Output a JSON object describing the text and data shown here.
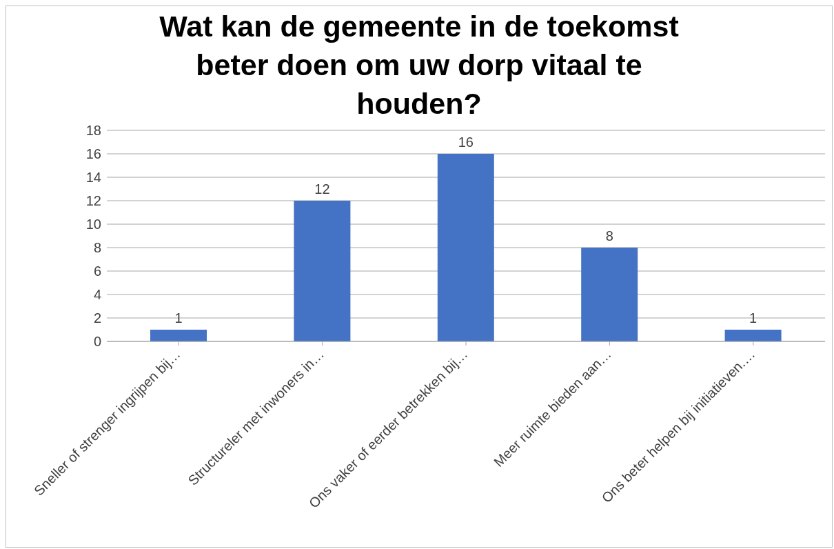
{
  "chart_data": {
    "type": "bar",
    "title": "Wat kan de gemeente in de toekomst beter doen om uw dorp vitaal te houden?",
    "categories": [
      "Sneller of strenger ingrijpen bij…",
      "Structureler met inwoners in…",
      "Ons vaker of eerder betrekken bij…",
      "Meer ruimte bieden aan…",
      "Ons beter helpen bij initiatieven.…"
    ],
    "values": [
      1,
      12,
      16,
      8,
      1
    ],
    "color": "#4472c4",
    "ylim": [
      0,
      18
    ],
    "yticks": [
      0,
      2,
      4,
      6,
      8,
      10,
      12,
      14,
      16,
      18
    ],
    "grid": "y",
    "data_labels": true
  }
}
